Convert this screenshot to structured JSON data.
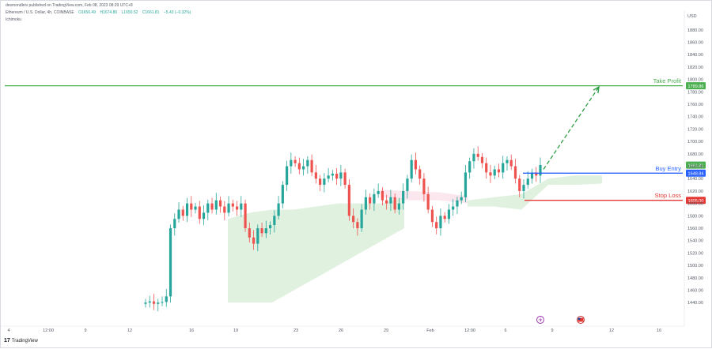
{
  "header": {
    "publisher": "desmondleiv published on TradingView.com, Feb 08, 2023 08:29 UTC+8",
    "symbol": "Ethereum / U.S. Dollar, 4h, COINBASE",
    "open": "O1656.49",
    "high": "H1674.80",
    "low": "L1650.52",
    "close": "C1661.81",
    "change": "−5.43 (−0.32%)",
    "indicator": "Ichimoku"
  },
  "footer": {
    "logo_text": "TradingView"
  },
  "colors": {
    "up": "#26a69a",
    "down": "#ef5350",
    "cloud_green": "#a5d6a7",
    "cloud_red": "#f8bbd0",
    "take_profit": "#4caf50",
    "buy_entry": "#2962ff",
    "stop_loss": "#e53935",
    "arrow": "#2e9e45",
    "axis_text": "#555b66"
  },
  "chart_data": {
    "type": "candlestick",
    "currency_label": "USD",
    "ylim": [
      1425,
      1890
    ],
    "y_ticks": [
      "1880.00",
      "1860.00",
      "1840.00",
      "1820.00",
      "1800.00",
      "1780.00",
      "1760.00",
      "1740.00",
      "1720.00",
      "1700.00",
      "1680.00",
      "1660.00",
      "1640.00",
      "1620.00",
      "1600.00",
      "1580.00",
      "1560.00",
      "1540.00",
      "1520.00",
      "1500.00",
      "1480.00",
      "1460.00",
      "1440.00"
    ],
    "x_ticks": [
      "4",
      "12:00",
      "9",
      "12",
      "16",
      "19",
      "23",
      "26",
      "29",
      "Feb",
      "12:00",
      "6",
      "9",
      "12",
      "16"
    ],
    "levels": [
      {
        "name": "Take Profit",
        "value": 1789.86,
        "tag": "1789.86"
      },
      {
        "name": "Buy Entry",
        "value": 1648.84,
        "tag": "1648.84"
      },
      {
        "name": "Stop Loss",
        "value": 1605.0,
        "tag": "1605.00"
      }
    ],
    "current_price": {
      "value": 1661.81,
      "tag": "1661.81"
    },
    "candles_close": [
      1440,
      1442,
      1438,
      1440,
      1441,
      1450,
      1560,
      1575,
      1590,
      1580,
      1600,
      1590,
      1595,
      1575,
      1585,
      1600,
      1590,
      1605,
      1595,
      1585,
      1600,
      1595,
      1590,
      1600,
      1560,
      1545,
      1535,
      1560,
      1552,
      1560,
      1565,
      1580,
      1600,
      1630,
      1660,
      1670,
      1665,
      1655,
      1660,
      1670,
      1650,
      1640,
      1630,
      1640,
      1645,
      1648,
      1640,
      1650,
      1630,
      1580,
      1570,
      1560,
      1590,
      1610,
      1600,
      1615,
      1620,
      1605,
      1600,
      1610,
      1590,
      1600,
      1620,
      1640,
      1670,
      1655,
      1640,
      1615,
      1590,
      1570,
      1560,
      1580,
      1575,
      1590,
      1595,
      1605,
      1610,
      1650,
      1668,
      1680,
      1675,
      1665,
      1650,
      1645,
      1655,
      1650,
      1665,
      1670,
      1660,
      1640,
      1620,
      1630,
      1640,
      1650,
      1645,
      1662
    ],
    "cloud_green": {
      "x_range": [
        "16",
        "29"
      ],
      "top": [
        1575,
        1585,
        1590,
        1590,
        1595,
        1600,
        1600,
        1600,
        1610
      ],
      "bottom": [
        1440,
        1440,
        1440,
        1460,
        1480,
        1500,
        1520,
        1540,
        1560
      ]
    },
    "cloud_green_2": {
      "top": [
        1605,
        1610,
        1615,
        1640,
        1645,
        1645
      ],
      "bottom": [
        1595,
        1595,
        1590,
        1630,
        1630,
        1632
      ]
    },
    "cloud_red": {
      "top": [
        1622,
        1620,
        1618,
        1612
      ],
      "bottom": [
        1610,
        1605,
        1605,
        1600
      ]
    },
    "event_icons": [
      "lightning-icon",
      "us-flag-icon"
    ]
  }
}
